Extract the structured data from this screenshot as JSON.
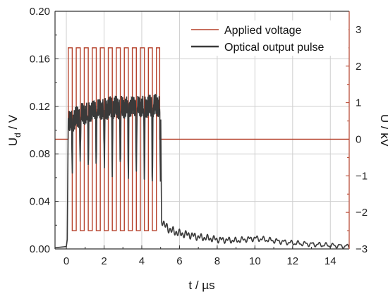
{
  "colors": {
    "applied_voltage": "#b5402a",
    "optical_output": "#3a3a3a",
    "right_axis": "#b5402a",
    "grid": "#cfcfcf"
  },
  "chart_data": {
    "type": "line",
    "xlabel": "t / µs",
    "ylabel_left": "U_d / V",
    "ylabel_left_main": "U",
    "ylabel_left_sub": "d",
    "ylabel_left_unit": " / V",
    "ylabel_right": "U / kV",
    "xlim": [
      -0.6,
      15.0
    ],
    "ylim_left": [
      0.0,
      0.2
    ],
    "ylim_right": [
      -3.0,
      3.5
    ],
    "x_ticks": [
      "0",
      "2",
      "4",
      "6",
      "8",
      "10",
      "12",
      "14"
    ],
    "y_left_ticks": [
      "0.00",
      "0.04",
      "0.08",
      "0.12",
      "0.16",
      "0.20"
    ],
    "y_right_ticks": [
      "-3",
      "-2",
      "-1",
      "0",
      "1",
      "2",
      "3"
    ],
    "grid": true,
    "legend_position": "top-right",
    "series": [
      {
        "name": "Applied voltage",
        "axis": "right",
        "description": "square wave +2.5 kV / -2.5 kV, ~0.43 µs period, from 0 to 5 µs, then 0 kV",
        "pulse_train": {
          "start": 0.1,
          "end": 4.95,
          "period": 0.425,
          "high": 2.5,
          "low": -2.5
        },
        "baseline_before": 0.0,
        "baseline_after": 0.0,
        "points": [
          [
            -0.6,
            0.0
          ],
          [
            0.1,
            0.0
          ],
          [
            0.1,
            2.5
          ],
          [
            4.95,
            2.5
          ],
          [
            4.95,
            0.0
          ],
          [
            15.0,
            0.0
          ]
        ]
      },
      {
        "name": "Optical output pulse",
        "axis": "left",
        "points": [
          [
            -0.6,
            0.001
          ],
          [
            0.0,
            0.002
          ],
          [
            0.05,
            0.008
          ],
          [
            0.1,
            0.11
          ],
          [
            0.2,
            0.105
          ],
          [
            0.3,
            0.108
          ],
          [
            0.5,
            0.11
          ],
          [
            0.8,
            0.113
          ],
          [
            1.0,
            0.114
          ],
          [
            1.5,
            0.117
          ],
          [
            2.0,
            0.118
          ],
          [
            2.5,
            0.119
          ],
          [
            3.0,
            0.119
          ],
          [
            3.5,
            0.12
          ],
          [
            4.0,
            0.12
          ],
          [
            4.5,
            0.12
          ],
          [
            4.9,
            0.121
          ],
          [
            5.0,
            0.121
          ],
          [
            5.05,
            0.025
          ],
          [
            5.2,
            0.02
          ],
          [
            5.5,
            0.016
          ],
          [
            6.0,
            0.013
          ],
          [
            6.5,
            0.012
          ],
          [
            7.0,
            0.01
          ],
          [
            8.0,
            0.008
          ],
          [
            9.0,
            0.007
          ],
          [
            10.0,
            0.009
          ],
          [
            11.0,
            0.007
          ],
          [
            12.0,
            0.005
          ],
          [
            13.0,
            0.004
          ],
          [
            14.0,
            0.003
          ],
          [
            15.0,
            0.002
          ]
        ]
      }
    ]
  }
}
